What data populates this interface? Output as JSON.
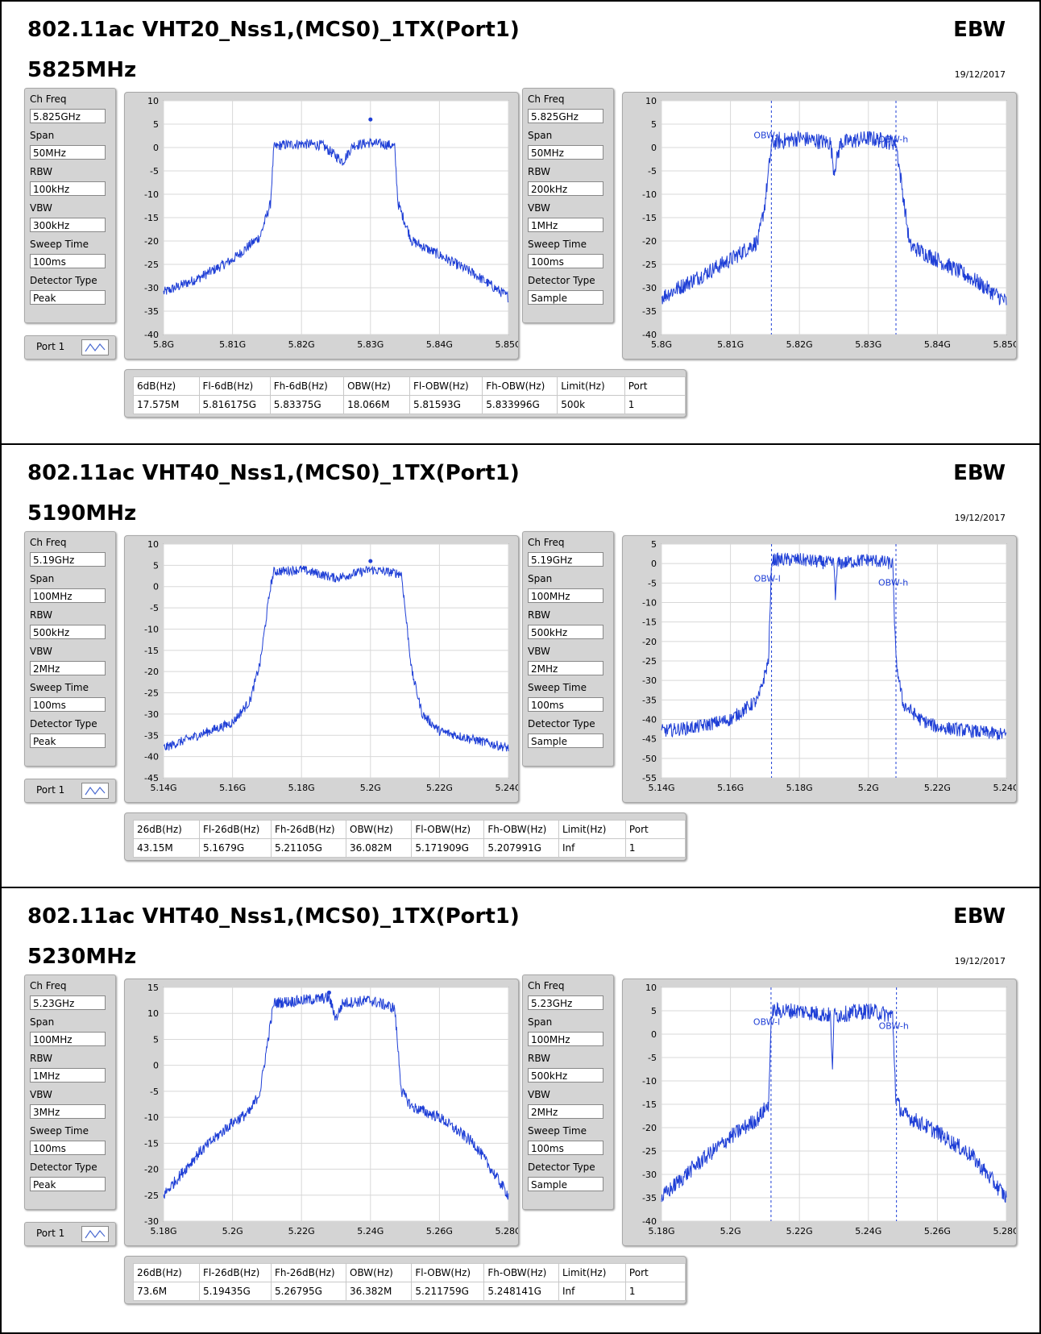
{
  "sections": [
    {
      "title": "802.11ac VHT20_Nss1,(MCS0)_1TX(Port1)",
      "freq": "5825MHz",
      "tag": "EBW",
      "date": "19/12/2017",
      "left_settings": [
        [
          "Ch Freq",
          "5.825GHz"
        ],
        [
          "Span",
          "50MHz"
        ],
        [
          "RBW",
          "100kHz"
        ],
        [
          "VBW",
          "300kHz"
        ],
        [
          "Sweep Time",
          "100ms"
        ],
        [
          "Detector Type",
          "Peak"
        ]
      ],
      "right_settings": [
        [
          "Ch Freq",
          "5.825GHz"
        ],
        [
          "Span",
          "50MHz"
        ],
        [
          "RBW",
          "200kHz"
        ],
        [
          "VBW",
          "1MHz"
        ],
        [
          "Sweep Time",
          "100ms"
        ],
        [
          "Detector Type",
          "Sample"
        ]
      ],
      "port_label": "Port 1",
      "table": {
        "headers": [
          "6dB(Hz)",
          "Fl-6dB(Hz)",
          "Fh-6dB(Hz)",
          "OBW(Hz)",
          "Fl-OBW(Hz)",
          "Fh-OBW(Hz)",
          "Limit(Hz)",
          "Port"
        ],
        "values": [
          "17.575M",
          "5.816175G",
          "5.83375G",
          "18.066M",
          "5.81593G",
          "5.833996G",
          "500k",
          "1"
        ]
      }
    },
    {
      "title": "802.11ac VHT40_Nss1,(MCS0)_1TX(Port1)",
      "freq": "5190MHz",
      "tag": "EBW",
      "date": "19/12/2017",
      "left_settings": [
        [
          "Ch Freq",
          "5.19GHz"
        ],
        [
          "Span",
          "100MHz"
        ],
        [
          "RBW",
          "500kHz"
        ],
        [
          "VBW",
          "2MHz"
        ],
        [
          "Sweep Time",
          "100ms"
        ],
        [
          "Detector Type",
          "Peak"
        ]
      ],
      "right_settings": [
        [
          "Ch Freq",
          "5.19GHz"
        ],
        [
          "Span",
          "100MHz"
        ],
        [
          "RBW",
          "500kHz"
        ],
        [
          "VBW",
          "2MHz"
        ],
        [
          "Sweep Time",
          "100ms"
        ],
        [
          "Detector Type",
          "Sample"
        ]
      ],
      "port_label": "Port 1",
      "table": {
        "headers": [
          "26dB(Hz)",
          "Fl-26dB(Hz)",
          "Fh-26dB(Hz)",
          "OBW(Hz)",
          "Fl-OBW(Hz)",
          "Fh-OBW(Hz)",
          "Limit(Hz)",
          "Port"
        ],
        "values": [
          "43.15M",
          "5.1679G",
          "5.21105G",
          "36.082M",
          "5.171909G",
          "5.207991G",
          "Inf",
          "1"
        ]
      }
    },
    {
      "title": "802.11ac VHT40_Nss1,(MCS0)_1TX(Port1)",
      "freq": "5230MHz",
      "tag": "EBW",
      "date": "19/12/2017",
      "left_settings": [
        [
          "Ch Freq",
          "5.23GHz"
        ],
        [
          "Span",
          "100MHz"
        ],
        [
          "RBW",
          "1MHz"
        ],
        [
          "VBW",
          "3MHz"
        ],
        [
          "Sweep Time",
          "100ms"
        ],
        [
          "Detector Type",
          "Peak"
        ]
      ],
      "right_settings": [
        [
          "Ch Freq",
          "5.23GHz"
        ],
        [
          "Span",
          "100MHz"
        ],
        [
          "RBW",
          "500kHz"
        ],
        [
          "VBW",
          "2MHz"
        ],
        [
          "Sweep Time",
          "100ms"
        ],
        [
          "Detector Type",
          "Sample"
        ]
      ],
      "port_label": "Port 1",
      "table": {
        "headers": [
          "26dB(Hz)",
          "Fl-26dB(Hz)",
          "Fh-26dB(Hz)",
          "OBW(Hz)",
          "Fl-OBW(Hz)",
          "Fh-OBW(Hz)",
          "Limit(Hz)",
          "Port"
        ],
        "values": [
          "73.6M",
          "5.19435G",
          "5.26795G",
          "36.382M",
          "5.211759G",
          "5.248141G",
          "Inf",
          "1"
        ]
      }
    }
  ],
  "colors": {
    "trace": "#1f3fd6",
    "panel": "#d4d4d4",
    "grid": "#d8d8d8"
  },
  "chart_data": [
    {
      "type": "line",
      "x_ticks": [
        "5.8G",
        "5.81G",
        "5.82G",
        "5.83G",
        "5.84G",
        "5.85G"
      ],
      "xlim": [
        5.8,
        5.85
      ],
      "ylim": [
        -40,
        10
      ],
      "y_ticks": [
        10,
        5,
        0,
        -5,
        -10,
        -15,
        -20,
        -25,
        -30,
        -35,
        -40
      ],
      "x": [
        5.8,
        5.805,
        5.81,
        5.814,
        5.8155,
        5.816,
        5.817,
        5.82,
        5.823,
        5.826,
        5.8275,
        5.83,
        5.833,
        5.8335,
        5.834,
        5.836,
        5.84,
        5.845,
        5.85
      ],
      "y": [
        -31,
        -28,
        -24,
        -19,
        -12,
        0,
        0.5,
        0.8,
        0.5,
        -3,
        0.5,
        1,
        0.5,
        0,
        -12,
        -20,
        -23,
        -27,
        -32
      ],
      "peak_marker": [
        5.83,
        6
      ]
    },
    {
      "type": "line",
      "x_ticks": [
        "5.8G",
        "5.81G",
        "5.82G",
        "5.83G",
        "5.84G",
        "5.85G"
      ],
      "xlim": [
        5.8,
        5.85
      ],
      "ylim": [
        -40,
        10
      ],
      "y_ticks": [
        10,
        5,
        0,
        -5,
        -10,
        -15,
        -20,
        -25,
        -30,
        -35,
        -40
      ],
      "x": [
        5.8,
        5.805,
        5.81,
        5.814,
        5.815,
        5.816,
        5.82,
        5.8245,
        5.825,
        5.826,
        5.83,
        5.834,
        5.835,
        5.836,
        5.84,
        5.845,
        5.85
      ],
      "y": [
        -32,
        -28,
        -24,
        -20,
        -12,
        1,
        2,
        1,
        -5,
        1,
        2,
        1,
        -10,
        -21,
        -24,
        -28,
        -33
      ],
      "annotations": [
        {
          "text": "OBW-l",
          "x": 5.81593
        },
        {
          "text": "OBW-h",
          "x": 5.833996
        }
      ]
    },
    {
      "type": "line",
      "x_ticks": [
        "5.14G",
        "5.16G",
        "5.18G",
        "5.2G",
        "5.22G",
        "5.24G"
      ],
      "xlim": [
        5.14,
        5.24
      ],
      "ylim": [
        -45,
        10
      ],
      "y_ticks": [
        10,
        5,
        0,
        -5,
        -10,
        -15,
        -20,
        -25,
        -30,
        -35,
        -40,
        -45
      ],
      "x": [
        5.14,
        5.15,
        5.16,
        5.165,
        5.168,
        5.171,
        5.172,
        5.18,
        5.19,
        5.2,
        5.209,
        5.21,
        5.212,
        5.215,
        5.22,
        5.23,
        5.24
      ],
      "y": [
        -38,
        -35,
        -32,
        -27,
        -18,
        0,
        3.5,
        4,
        2,
        4,
        3,
        -5,
        -20,
        -30,
        -34,
        -36,
        -38
      ],
      "peak_marker": [
        5.2,
        6
      ]
    },
    {
      "type": "line",
      "x_ticks": [
        "5.14G",
        "5.16G",
        "5.18G",
        "5.2G",
        "5.22G",
        "5.24G"
      ],
      "xlim": [
        5.14,
        5.24
      ],
      "ylim": [
        -55,
        5
      ],
      "y_ticks": [
        5,
        0,
        -5,
        -10,
        -15,
        -20,
        -25,
        -30,
        -35,
        -40,
        -45,
        -50,
        -55
      ],
      "x": [
        5.14,
        5.15,
        5.16,
        5.168,
        5.171,
        5.172,
        5.18,
        5.19,
        5.1905,
        5.191,
        5.2,
        5.207,
        5.208,
        5.21,
        5.215,
        5.22,
        5.24
      ],
      "y": [
        -43,
        -42,
        -40,
        -35,
        -25,
        1,
        1,
        0,
        -9,
        0,
        1,
        0,
        -25,
        -36,
        -40,
        -42,
        -44
      ],
      "annotations": [
        {
          "text": "OBW-l",
          "x": 5.171909
        },
        {
          "text": "OBW-h",
          "x": 5.207991
        }
      ]
    },
    {
      "type": "line",
      "x_ticks": [
        "5.18G",
        "5.2G",
        "5.22G",
        "5.24G",
        "5.26G",
        "5.28G"
      ],
      "xlim": [
        5.18,
        5.28
      ],
      "ylim": [
        -30,
        15
      ],
      "y_ticks": [
        15,
        10,
        5,
        0,
        -5,
        -10,
        -15,
        -20,
        -25,
        -30
      ],
      "x": [
        5.18,
        5.19,
        5.2,
        5.205,
        5.208,
        5.211,
        5.212,
        5.22,
        5.228,
        5.23,
        5.232,
        5.24,
        5.247,
        5.249,
        5.252,
        5.26,
        5.27,
        5.28
      ],
      "y": [
        -25,
        -17,
        -11,
        -9,
        -5,
        8,
        12,
        12.5,
        13,
        9,
        12,
        12.5,
        11,
        -5,
        -8,
        -10,
        -15,
        -25
      ],
      "peak_marker": [
        5.228,
        14
      ]
    },
    {
      "type": "line",
      "x_ticks": [
        "5.18G",
        "5.2G",
        "5.22G",
        "5.24G",
        "5.26G",
        "5.28G"
      ],
      "xlim": [
        5.18,
        5.28
      ],
      "ylim": [
        -40,
        10
      ],
      "y_ticks": [
        10,
        5,
        0,
        -5,
        -10,
        -15,
        -20,
        -25,
        -30,
        -35,
        -40
      ],
      "x": [
        5.18,
        5.19,
        5.2,
        5.208,
        5.211,
        5.212,
        5.22,
        5.229,
        5.2295,
        5.23,
        5.24,
        5.247,
        5.248,
        5.25,
        5.26,
        5.27,
        5.28
      ],
      "y": [
        -35,
        -28,
        -22,
        -18,
        -15,
        5,
        5,
        4,
        -8,
        4,
        5,
        4,
        -14,
        -17,
        -21,
        -26,
        -35
      ],
      "annotations": [
        {
          "text": "OBW-l",
          "x": 5.211759
        },
        {
          "text": "OBW-h",
          "x": 5.248141
        }
      ]
    }
  ]
}
